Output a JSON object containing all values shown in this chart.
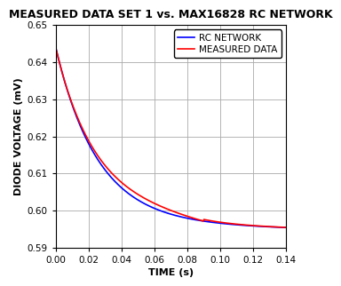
{
  "title": "MEASURED DATA SET 1 vs. MAX16828 RC NETWORK",
  "xlabel": "TIME (s)",
  "ylabel": "DIODE VOLTAGE (mV)",
  "xlim": [
    0,
    0.14
  ],
  "ylim": [
    0.59,
    0.65
  ],
  "xticks": [
    0.0,
    0.02,
    0.04,
    0.06,
    0.08,
    0.1,
    0.12,
    0.14
  ],
  "yticks": [
    0.59,
    0.6,
    0.61,
    0.62,
    0.63,
    0.64,
    0.65
  ],
  "rc_color": "#0000FF",
  "measured_color": "#FF0000",
  "background_color": "#FFFFFF",
  "grid_color": "#AAAAAA",
  "legend_labels": [
    "RC NETWORK",
    "MEASURED DATA"
  ],
  "title_fontsize": 9,
  "axis_label_fontsize": 8,
  "tick_fontsize": 7.5,
  "legend_fontsize": 7.5
}
